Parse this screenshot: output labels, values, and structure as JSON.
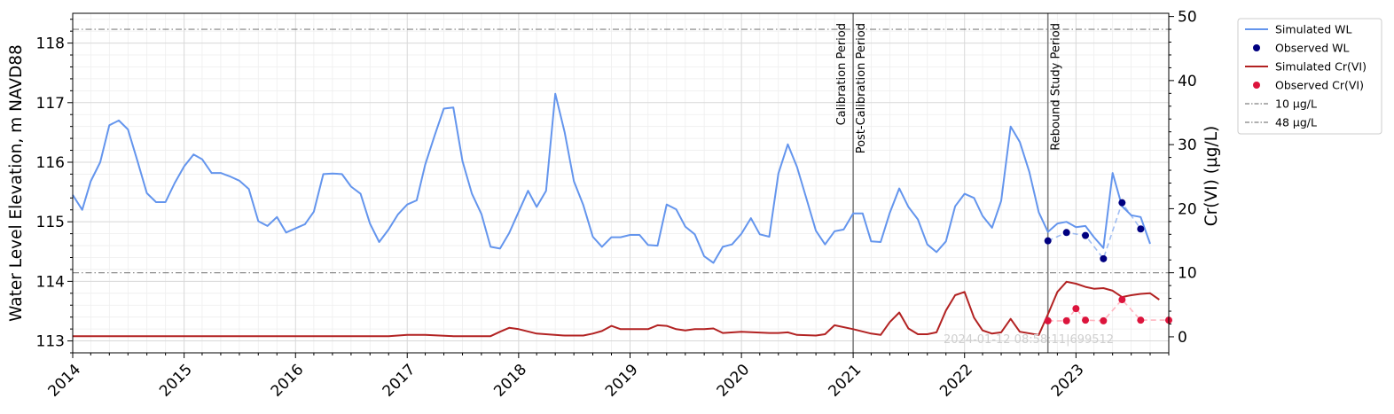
{
  "chart_data": {
    "type": "line",
    "x_axis": {
      "type": "date",
      "range": [
        "2014-01-01",
        "2023-11-01"
      ],
      "tick_labels": [
        "2014",
        "2015",
        "2016",
        "2017",
        "2018",
        "2019",
        "2020",
        "2021",
        "2022",
        "2023"
      ]
    },
    "y_left": {
      "label": "Water Level Elevation, m NAVD88",
      "range": [
        112.8,
        118.5
      ],
      "ticks": [
        113,
        114,
        115,
        116,
        117,
        118
      ]
    },
    "y_right": {
      "label": "Cr(VI) (µg/L)",
      "range": [
        -2.5,
        50.5
      ],
      "ticks": [
        0,
        10,
        20,
        30,
        40,
        50
      ]
    },
    "grid": true,
    "legend_position": "outside-right-top",
    "colors": {
      "simulated_wl": "#6495ed",
      "observed_wl": "#000080",
      "simulated_cr": "#b22222",
      "observed_cr": "#dc143c",
      "threshold": "#808080",
      "period_line": "#808080",
      "observed_wl_dashed": "#6495ed",
      "observed_cr_dashed": "#ffb6c1"
    },
    "series": [
      {
        "name": "Simulated WL",
        "kind": "line",
        "axis": "left",
        "x": [
          "2014-01-01",
          "2014-02-01",
          "2014-03-01",
          "2014-04-01",
          "2014-05-01",
          "2014-06-01",
          "2014-07-01",
          "2014-08-01",
          "2014-09-01",
          "2014-10-01",
          "2014-11-01",
          "2014-12-01",
          "2015-01-01",
          "2015-02-01",
          "2015-03-01",
          "2015-04-01",
          "2015-05-01",
          "2015-06-01",
          "2015-07-01",
          "2015-08-01",
          "2015-09-01",
          "2015-10-01",
          "2015-11-01",
          "2015-12-01",
          "2016-01-01",
          "2016-02-01",
          "2016-03-01",
          "2016-04-01",
          "2016-05-01",
          "2016-06-01",
          "2016-07-01",
          "2016-08-01",
          "2016-09-01",
          "2016-10-01",
          "2016-11-01",
          "2016-12-01",
          "2017-01-01",
          "2017-02-01",
          "2017-03-01",
          "2017-04-01",
          "2017-05-01",
          "2017-06-01",
          "2017-07-01",
          "2017-08-01",
          "2017-09-01",
          "2017-10-01",
          "2017-11-01",
          "2017-12-01",
          "2018-01-01",
          "2018-02-01",
          "2018-03-01",
          "2018-04-01",
          "2018-05-01",
          "2018-06-01",
          "2018-07-01",
          "2018-08-01",
          "2018-09-01",
          "2018-10-01",
          "2018-11-01",
          "2018-12-01",
          "2019-01-01",
          "2019-02-01",
          "2019-03-01",
          "2019-04-01",
          "2019-05-01",
          "2019-06-01",
          "2019-07-01",
          "2019-08-01",
          "2019-09-01",
          "2019-10-01",
          "2019-11-01",
          "2019-12-01",
          "2020-01-01",
          "2020-02-01",
          "2020-03-01",
          "2020-04-01",
          "2020-05-01",
          "2020-06-01",
          "2020-07-01",
          "2020-08-01",
          "2020-09-01",
          "2020-10-01",
          "2020-11-01",
          "2020-12-01",
          "2021-01-01",
          "2021-02-01",
          "2021-03-01",
          "2021-04-01",
          "2021-05-01",
          "2021-06-01",
          "2021-07-01",
          "2021-08-01",
          "2021-09-01",
          "2021-10-01",
          "2021-11-01",
          "2021-12-01",
          "2022-01-01",
          "2022-02-01",
          "2022-03-01",
          "2022-04-01",
          "2022-05-01",
          "2022-06-01",
          "2022-07-01",
          "2022-08-01",
          "2022-09-01",
          "2022-10-01",
          "2022-11-01",
          "2022-12-01",
          "2023-01-01",
          "2023-02-01",
          "2023-03-01",
          "2023-04-01",
          "2023-05-01",
          "2023-06-01",
          "2023-07-01",
          "2023-08-01",
          "2023-09-01"
        ],
        "y": [
          115.45,
          115.2,
          115.68,
          116.0,
          116.62,
          116.7,
          116.55,
          116.02,
          115.48,
          115.33,
          115.33,
          115.65,
          115.93,
          116.13,
          116.05,
          115.82,
          115.82,
          115.76,
          115.69,
          115.55,
          115.01,
          114.93,
          115.08,
          114.82,
          114.89,
          114.96,
          115.17,
          115.8,
          115.81,
          115.8,
          115.59,
          115.47,
          114.97,
          114.66,
          114.87,
          115.12,
          115.29,
          115.36,
          115.96,
          116.45,
          116.9,
          116.92,
          116.02,
          115.47,
          115.13,
          114.58,
          114.55,
          114.81,
          115.17,
          115.52,
          115.25,
          115.52,
          117.15,
          116.5,
          115.68,
          115.28,
          114.75,
          114.58,
          114.74,
          114.74,
          114.78,
          114.78,
          114.61,
          114.6,
          115.29,
          115.21,
          114.92,
          114.79,
          114.42,
          114.31,
          114.58,
          114.62,
          114.8,
          115.06,
          114.79,
          114.75,
          115.81,
          116.3,
          115.92,
          115.39,
          114.85,
          114.62,
          114.84,
          114.87,
          115.14,
          115.14,
          114.67,
          114.66,
          115.15,
          115.56,
          115.25,
          115.04,
          114.62,
          114.49,
          114.67,
          115.26,
          115.47,
          115.4,
          115.1,
          114.9,
          115.35,
          116.6,
          116.34,
          115.84,
          115.16,
          114.83,
          114.97,
          115.0,
          114.91,
          114.93,
          114.74,
          114.56,
          115.82,
          115.26,
          115.11,
          115.08,
          114.63
        ]
      },
      {
        "name": "Observed WL",
        "kind": "scatter",
        "axis": "left",
        "x": [
          "2022-10-01",
          "2022-12-01",
          "2023-02-01",
          "2023-04-01",
          "2023-06-01",
          "2023-08-01"
        ],
        "y": [
          114.68,
          114.82,
          114.77,
          114.38,
          115.32,
          114.88
        ]
      },
      {
        "name": "Simulated Cr(VI)",
        "kind": "line",
        "axis": "right",
        "x": [
          "2014-01-01",
          "2014-07-01",
          "2015-01-01",
          "2015-07-01",
          "2016-01-01",
          "2016-04-01",
          "2016-07-01",
          "2016-10-01",
          "2016-11-01",
          "2017-01-01",
          "2017-03-01",
          "2017-06-01",
          "2017-10-01",
          "2017-11-01",
          "2017-12-01",
          "2018-01-01",
          "2018-03-01",
          "2018-06-01",
          "2018-08-01",
          "2018-09-01",
          "2018-10-01",
          "2018-11-01",
          "2018-12-01",
          "2019-02-01",
          "2019-03-01",
          "2019-04-01",
          "2019-05-01",
          "2019-06-01",
          "2019-07-01",
          "2019-08-01",
          "2019-09-01",
          "2019-10-01",
          "2019-11-01",
          "2020-01-01",
          "2020-04-01",
          "2020-05-01",
          "2020-06-01",
          "2020-07-01",
          "2020-09-01",
          "2020-10-01",
          "2020-11-01",
          "2021-01-01",
          "2021-03-01",
          "2021-04-01",
          "2021-05-01",
          "2021-06-01",
          "2021-07-01",
          "2021-08-01",
          "2021-09-01",
          "2021-10-01",
          "2021-11-01",
          "2021-12-01",
          "2022-01-01",
          "2022-02-01",
          "2022-03-01",
          "2022-04-01",
          "2022-05-01",
          "2022-06-01",
          "2022-07-01",
          "2022-09-01",
          "2022-10-01",
          "2022-11-01",
          "2022-12-01",
          "2023-01-01",
          "2023-02-01",
          "2023-03-01",
          "2023-04-01",
          "2023-05-01",
          "2023-06-01",
          "2023-07-01",
          "2023-08-01",
          "2023-09-01",
          "2023-10-01"
        ],
        "y": [
          0.1,
          0.1,
          0.1,
          0.1,
          0.1,
          0.1,
          0.1,
          0.1,
          0.1,
          0.3,
          0.3,
          0.1,
          0.1,
          0.8,
          1.4,
          1.2,
          0.5,
          0.2,
          0.2,
          0.5,
          0.9,
          1.7,
          1.2,
          1.2,
          1.2,
          1.8,
          1.7,
          1.2,
          1.0,
          1.2,
          1.2,
          1.3,
          0.6,
          0.8,
          0.6,
          0.6,
          0.7,
          0.3,
          0.2,
          0.4,
          1.8,
          1.2,
          0.5,
          0.3,
          2.3,
          3.8,
          1.3,
          0.4,
          0.4,
          0.7,
          4.1,
          6.5,
          7.0,
          3.0,
          1.0,
          0.5,
          0.7,
          2.8,
          0.8,
          0.3,
          3.5,
          7.0,
          8.6,
          8.3,
          7.8,
          7.5,
          7.6,
          7.2,
          6.2,
          6.5,
          6.7,
          6.8,
          5.8
        ]
      },
      {
        "name": "Observed Cr(VI)",
        "kind": "scatter",
        "axis": "right",
        "x": [
          "2022-10-01",
          "2022-12-01",
          "2023-01-01",
          "2023-02-01",
          "2023-04-01",
          "2023-06-01",
          "2023-08-01",
          "2023-11-01"
        ],
        "y": [
          2.5,
          2.5,
          4.4,
          2.6,
          2.5,
          5.8,
          2.6,
          2.6
        ]
      }
    ],
    "reference_lines": [
      {
        "name": "10 µg/L",
        "axis": "right",
        "y": 10
      },
      {
        "name": "48 µg/L",
        "axis": "right",
        "y": 48
      }
    ],
    "period_lines": [
      {
        "x": "2021-01-01",
        "labels": [
          "Calibration Period",
          "Post-Calibration Period"
        ]
      },
      {
        "x": "2022-10-01",
        "labels": [
          "Rebound Study Period"
        ]
      }
    ],
    "watermark": "2024-01-12 08:58:11|699512"
  },
  "legend": {
    "items": [
      {
        "label": "Simulated WL"
      },
      {
        "label": "Observed WL"
      },
      {
        "label": "Simulated Cr(VI)"
      },
      {
        "label": "Observed Cr(VI)"
      },
      {
        "label": "10 µg/L"
      },
      {
        "label": "48 µg/L"
      }
    ]
  }
}
